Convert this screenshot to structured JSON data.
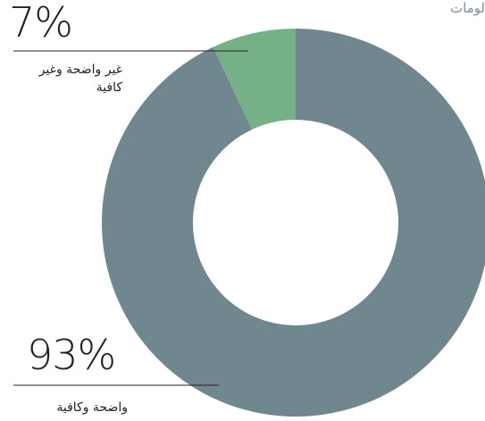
{
  "chart_data": {
    "type": "donut",
    "title": "لومات",
    "categories": [
      "غير واضحة وغير كافية",
      "واضحة وكافية"
    ],
    "values": [
      7,
      93
    ],
    "value_labels": [
      "7%",
      "93%"
    ],
    "colors": [
      "#76b087",
      "#718790"
    ]
  }
}
